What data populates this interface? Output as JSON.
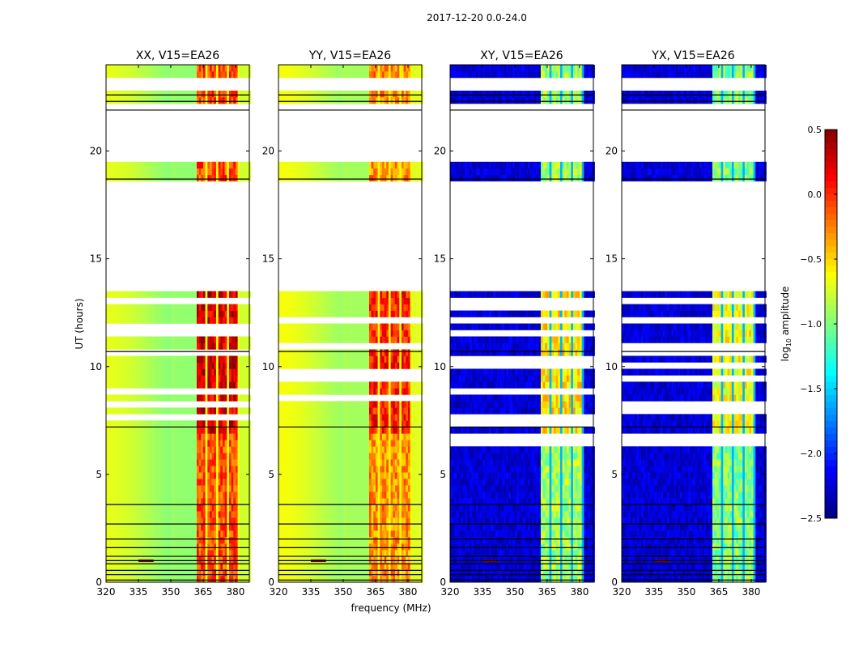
{
  "suptitle": "2017-12-20 0.0-24.0",
  "xlabel": "frequency (MHz)",
  "ylabel": "UT (hours)",
  "colorbar": {
    "label_prefix": "log",
    "label_sub": "10",
    "label_suffix": " amplitude",
    "range": [
      -2.5,
      0.5
    ],
    "ticks": [
      0.5,
      0.0,
      -0.5,
      -1.0,
      -1.5,
      -2.0,
      -2.5
    ],
    "tick_labels": [
      "0.5",
      "0.0",
      "−0.5",
      "−1.0",
      "−1.5",
      "−2.0",
      "−2.5"
    ],
    "colormap": "jet"
  },
  "chart_data": [
    {
      "type": "heatmap",
      "title": "XX, V15=EA26",
      "xlim": [
        320,
        386.4
      ],
      "ylim": [
        0,
        24
      ],
      "xticks": [
        320,
        335,
        350,
        365,
        380
      ],
      "yticks": [
        0,
        5,
        10,
        15,
        20
      ],
      "base_level": -0.85,
      "band_level": -0.1,
      "band_columns": [
        [
          362,
          366.5
        ],
        [
          367,
          371.5
        ],
        [
          372,
          376
        ],
        [
          377,
          381
        ]
      ],
      "flagged_hours": [
        [
          13.4,
          18.7
        ],
        [
          19.5,
          21.9
        ]
      ],
      "black_lines": [
        0.1,
        0.35,
        0.55,
        0.85,
        1.0,
        1.2,
        1.6,
        2.0,
        2.7,
        3.6,
        7.2,
        10.7,
        18.7,
        21.9,
        22.3,
        22.6
      ]
    },
    {
      "type": "heatmap",
      "title": "YY, V15=EA26",
      "xlim": [
        320,
        386.4
      ],
      "ylim": [
        0,
        24
      ],
      "xticks": [
        320,
        335,
        350,
        365,
        380
      ],
      "yticks": [
        0,
        5,
        10,
        15,
        20
      ],
      "base_level": -0.8,
      "band_level": -0.3,
      "band_columns": [
        [
          362,
          366.5
        ],
        [
          367,
          371.5
        ],
        [
          372,
          376
        ],
        [
          377,
          381
        ]
      ],
      "flagged_hours": [
        [
          13.4,
          18.7
        ],
        [
          19.5,
          21.9
        ]
      ],
      "black_lines": [
        0.1,
        0.35,
        0.55,
        0.85,
        1.0,
        1.2,
        1.6,
        2.0,
        2.7,
        3.6,
        7.2,
        10.7,
        18.7,
        21.9,
        22.3,
        22.6
      ]
    },
    {
      "type": "heatmap",
      "title": "XY, V15=EA26",
      "xlim": [
        320,
        386.4
      ],
      "ylim": [
        0,
        24
      ],
      "xticks": [
        320,
        335,
        350,
        365,
        380
      ],
      "yticks": [
        0,
        5,
        10,
        15,
        20
      ],
      "base_level": -2.4,
      "band_level": -0.9,
      "band_columns": [
        [
          362,
          366.5
        ],
        [
          367,
          371.5
        ],
        [
          372,
          376
        ],
        [
          377,
          381
        ]
      ],
      "flagged_hours": [
        [
          13.4,
          18.7
        ],
        [
          19.5,
          21.9
        ],
        [
          6.4,
          6.8
        ]
      ],
      "black_lines": [
        0.1,
        0.35,
        0.55,
        0.85,
        1.0,
        1.2,
        1.6,
        2.0,
        2.7,
        3.6,
        7.2,
        10.7,
        18.7,
        21.9,
        22.3,
        22.6
      ]
    },
    {
      "type": "heatmap",
      "title": "YX, V15=EA26",
      "xlim": [
        320,
        386.4
      ],
      "ylim": [
        0,
        24
      ],
      "xticks": [
        320,
        335,
        350,
        365,
        380
      ],
      "yticks": [
        0,
        5,
        10,
        15,
        20
      ],
      "base_level": -2.4,
      "band_level": -1.0,
      "band_columns": [
        [
          362,
          366.5
        ],
        [
          367,
          371.5
        ],
        [
          372,
          376
        ],
        [
          377,
          381
        ]
      ],
      "flagged_hours": [
        [
          13.4,
          18.7
        ],
        [
          19.5,
          21.9
        ],
        [
          6.4,
          6.8
        ]
      ],
      "black_lines": [
        0.1,
        0.35,
        0.55,
        0.85,
        1.0,
        1.2,
        1.6,
        2.0,
        2.7,
        3.6,
        7.2,
        10.7,
        18.7,
        21.9,
        22.3,
        22.6
      ]
    }
  ]
}
